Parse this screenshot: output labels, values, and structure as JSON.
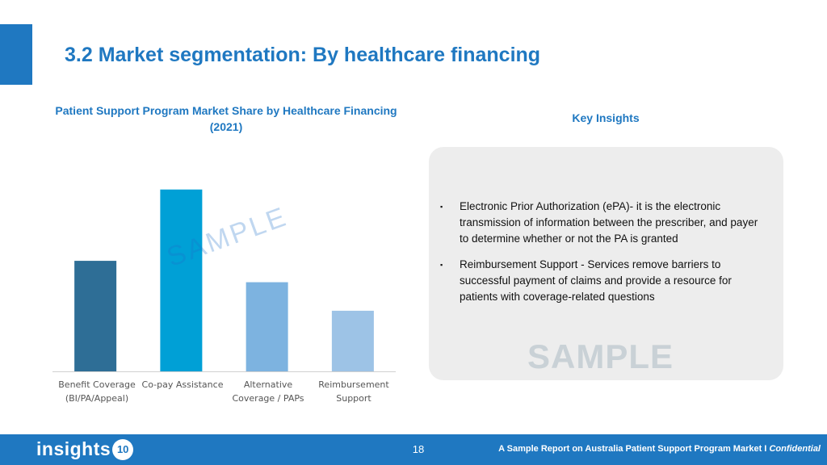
{
  "header": {
    "title": "3.2 Market segmentation: By healthcare financing"
  },
  "chart_data": {
    "type": "bar",
    "title_lines": [
      "Patient Support Program Market Share by Healthcare Financing",
      "(2021)"
    ],
    "categories": [
      [
        "Benefit Coverage",
        "(BI/PA/Appeal)"
      ],
      [
        "Co-pay Assistance"
      ],
      [
        "Alternative",
        "Coverage / PAPs"
      ],
      [
        "Reimbursement",
        "Support"
      ]
    ],
    "values": [
      31,
      51,
      25,
      17
    ],
    "ylim": [
      0,
      60
    ],
    "colors": [
      "#2e6e96",
      "#00a0d6",
      "#7db3e0",
      "#9dc3e6"
    ],
    "grid": false,
    "axis_values_shown": false
  },
  "watermarks": {
    "chart": "SAMPLE",
    "card": "SAMPLE"
  },
  "insights": {
    "title": "Key Insights",
    "items": [
      "Electronic Prior Authorization (ePA)- it is the electronic transmission of information between the prescriber, and payer to determine whether or not the PA is granted",
      "Reimbursement Support - Services remove barriers to successful payment of claims and provide a resource for patients with coverage-related questions"
    ],
    "bullet_glyph": "▪"
  },
  "footer": {
    "logo_text": "insights",
    "logo_badge": "10",
    "page_number": "18",
    "report_text": "A Sample Report on Australia Patient Support Program Market I",
    "confidential": "Confidential"
  },
  "colors": {
    "brand": "#1f78c1",
    "card_bg": "#ededed"
  }
}
